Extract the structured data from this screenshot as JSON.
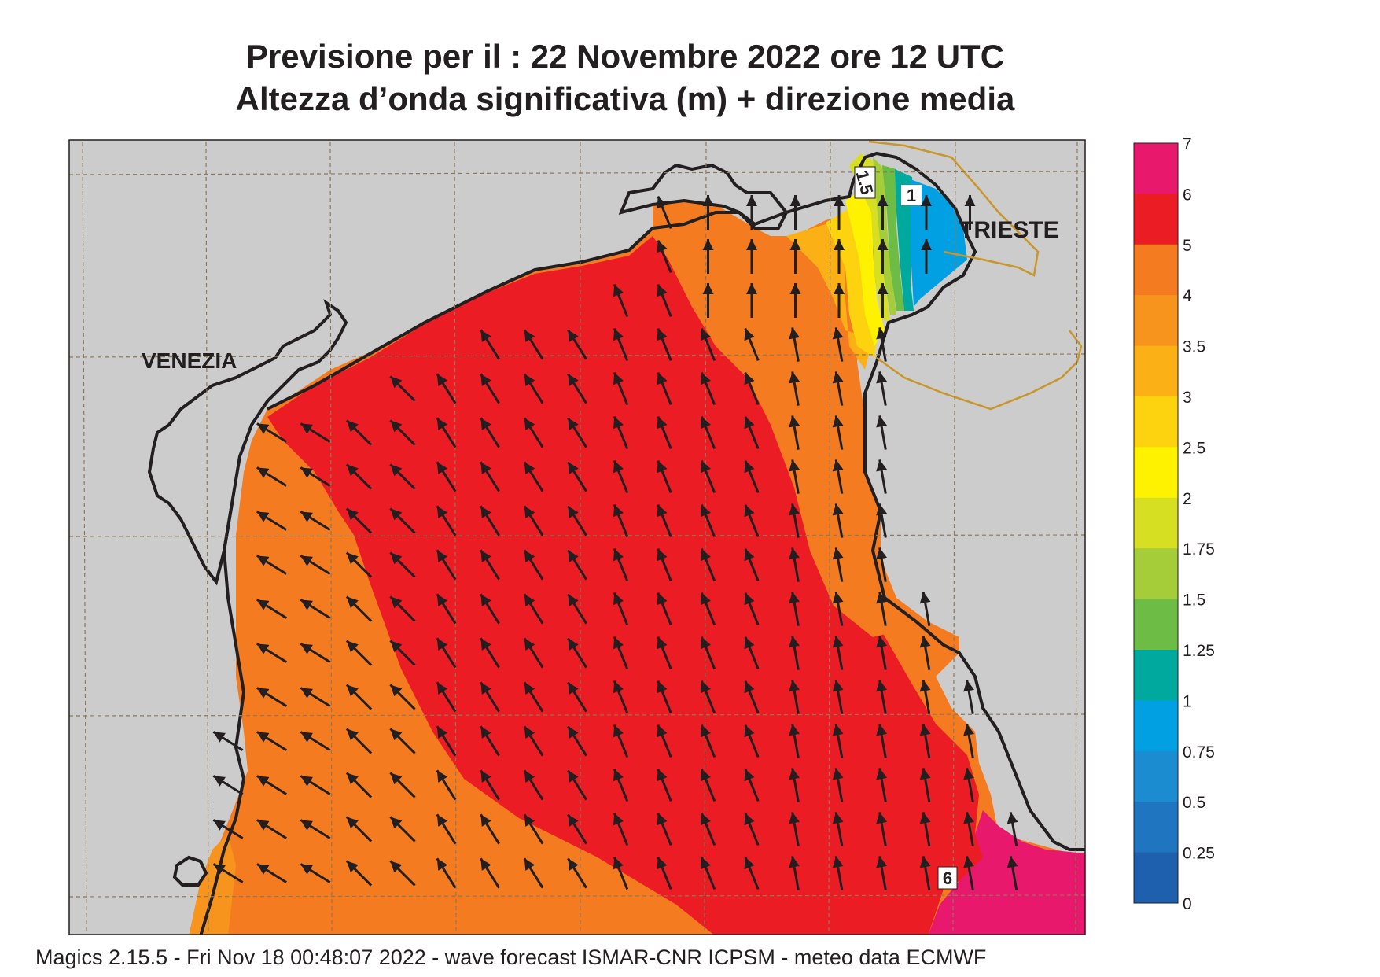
{
  "title_line1": "Previsione per il  :  22 Novembre  2022   ore 12 UTC",
  "title_line2": "Altezza d’onda significativa (m) + direzione media",
  "cities": [
    {
      "name": "VENEZIA"
    },
    {
      "name": "TRIESTE"
    }
  ],
  "contour_labels": [
    "1.5",
    "1",
    "6"
  ],
  "legend": {
    "ticks": [
      "7",
      "6",
      "5",
      "4",
      "3.5",
      "3",
      "2.5",
      "2",
      "1.75",
      "1.5",
      "1.25",
      "1",
      "0.75",
      "0.5",
      "0.25",
      "0"
    ],
    "colors": [
      "#e8186d",
      "#ec1c24",
      "#f47b20",
      "#f7941d",
      "#fbb016",
      "#fdd20e",
      "#fff200",
      "#d7df23",
      "#a5cd39",
      "#6cbc45",
      "#00a99d",
      "#00a0e3",
      "#1c8cd1",
      "#1f75c0",
      "#1e5fae"
    ]
  },
  "colors": {
    "land": "#cccccc",
    "coast": "#231f20",
    "border": "#c8962a",
    "grid": "#8c7a5a"
  },
  "footer": "Magics 2.15.5 - Fri Nov 18 00:48:07 2022 - wave forecast  ISMAR-CNR  ICPSM - meteo data   ECMWF"
}
